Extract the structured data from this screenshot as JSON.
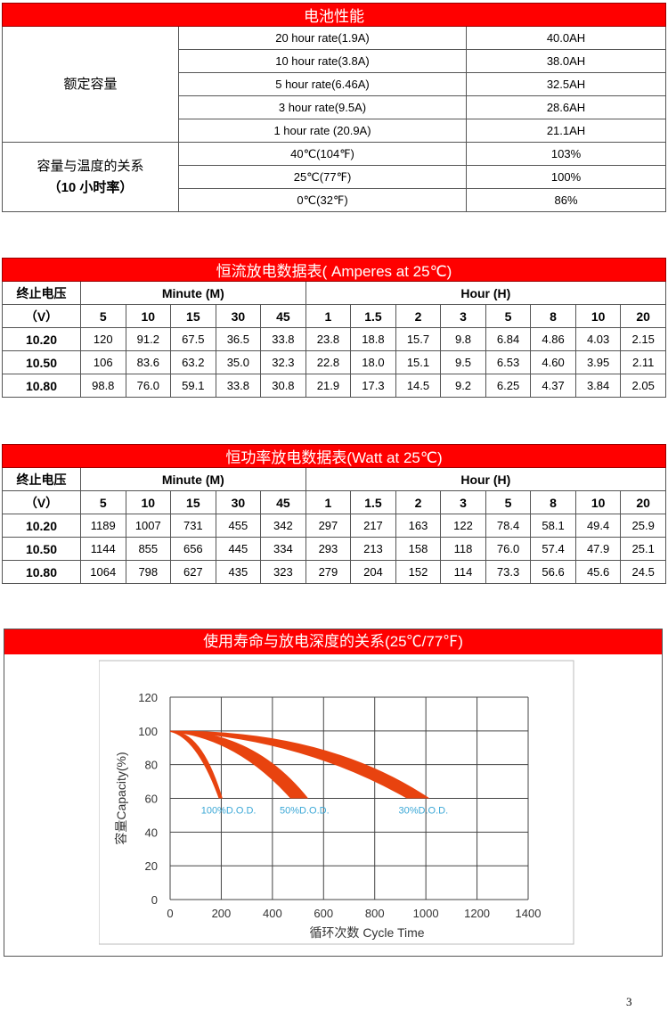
{
  "performance": {
    "title": "电池性能",
    "rated_capacity": {
      "label": "额定容量",
      "rows": [
        {
          "rate": "20 hour rate(1.9A)",
          "value": "40.0AH"
        },
        {
          "rate": "10 hour rate(3.8A)",
          "value": "38.0AH"
        },
        {
          "rate": "5 hour rate(6.46A)",
          "value": "32.5AH"
        },
        {
          "rate": "3 hour rate(9.5A)",
          "value": "28.6AH"
        },
        {
          "rate": "1 hour rate (20.9A)",
          "value": "21.1AH"
        }
      ]
    },
    "temperature": {
      "label": "容量与温度的关系",
      "sublabel": "（10 小时率）",
      "rows": [
        {
          "temp": "40℃(104℉)",
          "value": "103%"
        },
        {
          "temp": "25℃(77℉)",
          "value": "100%"
        },
        {
          "temp": "0℃(32℉)",
          "value": "86%"
        }
      ]
    }
  },
  "current_table": {
    "title": "恒流放电数据表( Amperes at 25℃)",
    "voltage_label": "终止电压",
    "voltage_unit": "（V）",
    "minute_label": "Minute (M)",
    "hour_label": "Hour (H)",
    "columns": [
      "5",
      "10",
      "15",
      "30",
      "45",
      "1",
      "1.5",
      "2",
      "3",
      "5",
      "8",
      "10",
      "20"
    ],
    "rows": [
      {
        "v": "10.20",
        "vals": [
          "120",
          "91.2",
          "67.5",
          "36.5",
          "33.8",
          "23.8",
          "18.8",
          "15.7",
          "9.8",
          "6.84",
          "4.86",
          "4.03",
          "2.15"
        ]
      },
      {
        "v": "10.50",
        "vals": [
          "106",
          "83.6",
          "63.2",
          "35.0",
          "32.3",
          "22.8",
          "18.0",
          "15.1",
          "9.5",
          "6.53",
          "4.60",
          "3.95",
          "2.11"
        ]
      },
      {
        "v": "10.80",
        "vals": [
          "98.8",
          "76.0",
          "59.1",
          "33.8",
          "30.8",
          "21.9",
          "17.3",
          "14.5",
          "9.2",
          "6.25",
          "4.37",
          "3.84",
          "2.05"
        ]
      }
    ]
  },
  "power_table": {
    "title": "恒功率放电数据表(Watt at 25℃)",
    "voltage_label": "终止电压",
    "voltage_unit": "（V）",
    "minute_label": "Minute (M)",
    "hour_label": "Hour (H)",
    "columns": [
      "5",
      "10",
      "15",
      "30",
      "45",
      "1",
      "1.5",
      "2",
      "3",
      "5",
      "8",
      "10",
      "20"
    ],
    "rows": [
      {
        "v": "10.20",
        "vals": [
          "1189",
          "1007",
          "731",
          "455",
          "342",
          "297",
          "217",
          "163",
          "122",
          "78.4",
          "58.1",
          "49.4",
          "25.9"
        ]
      },
      {
        "v": "10.50",
        "vals": [
          "1144",
          "855",
          "656",
          "445",
          "334",
          "293",
          "213",
          "158",
          "118",
          "76.0",
          "57.4",
          "47.9",
          "25.1"
        ]
      },
      {
        "v": "10.80",
        "vals": [
          "1064",
          "798",
          "627",
          "435",
          "323",
          "279",
          "204",
          "152",
          "114",
          "73.3",
          "56.6",
          "45.6",
          "24.5"
        ]
      }
    ]
  },
  "life_chart": {
    "title": "使用寿命与放电深度的关系(25℃/77℉)"
  },
  "chart_data": {
    "type": "area",
    "xlabel": "循环次数 Cycle Time",
    "ylabel": "容量Capacity(%)",
    "xlim": [
      0,
      1400
    ],
    "ylim": [
      0,
      120
    ],
    "xticks": [
      "0",
      "200",
      "400",
      "600",
      "800",
      "1000",
      "1200",
      "1400"
    ],
    "yticks": [
      "0",
      "20",
      "40",
      "60",
      "80",
      "100",
      "120"
    ],
    "grid": true,
    "band_color": "#e8430f",
    "label_color": "#3aa7d6",
    "series": [
      {
        "name": "100%D.O.D.",
        "start": [
          0,
          100
        ],
        "end_lower": [
          190,
          60
        ],
        "end_upper": [
          205,
          60
        ]
      },
      {
        "name": "50%D.O.D.",
        "start": [
          0,
          100
        ],
        "end_lower": [
          470,
          60
        ],
        "end_upper": [
          540,
          60
        ]
      },
      {
        "name": "30%D.O.D.",
        "start": [
          0,
          100
        ],
        "end_lower": [
          925,
          60
        ],
        "end_upper": [
          1015,
          60
        ]
      }
    ]
  },
  "page_number": "3"
}
